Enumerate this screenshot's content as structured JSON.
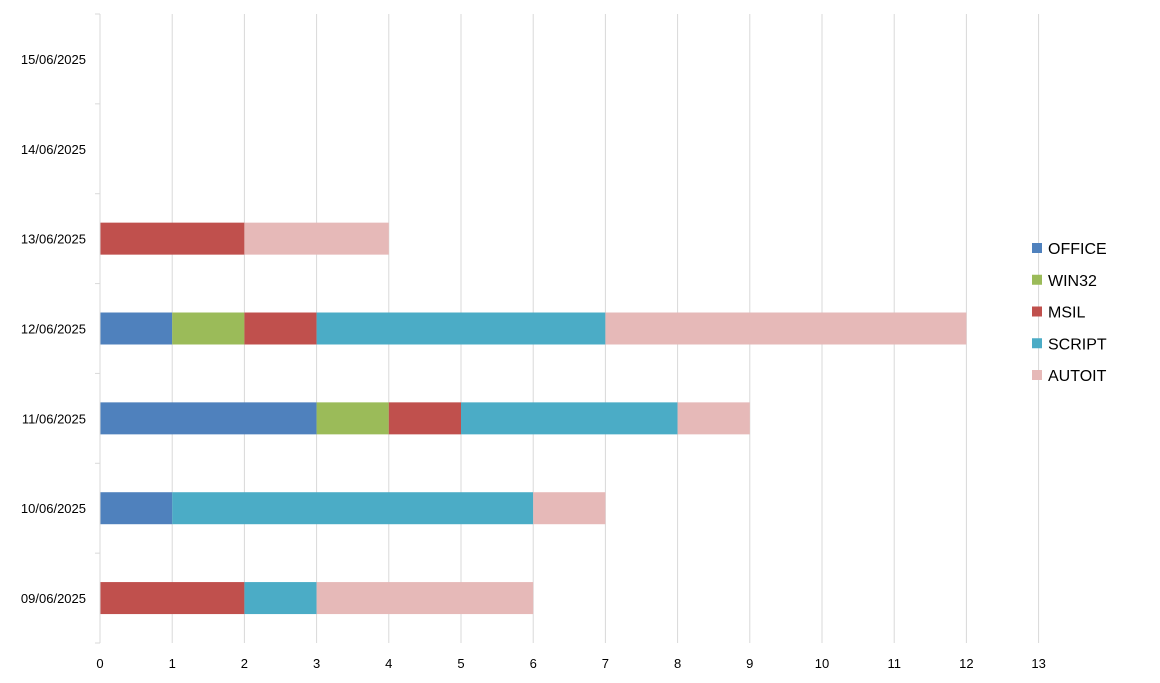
{
  "chart_data": {
    "type": "bar",
    "orientation": "horizontal",
    "stacked": true,
    "title": "",
    "xlabel": "",
    "ylabel": "",
    "xlim": [
      0,
      13
    ],
    "x_ticks": [
      0,
      1,
      2,
      3,
      4,
      5,
      6,
      7,
      8,
      9,
      10,
      11,
      12,
      13
    ],
    "grid": "vertical",
    "legend_position": "right",
    "categories": [
      "09/06/2025",
      "10/06/2025",
      "11/06/2025",
      "12/06/2025",
      "13/06/2025",
      "14/06/2025",
      "15/06/2025"
    ],
    "series": [
      {
        "name": "OFFICE",
        "color": "#4f81bd",
        "values": [
          0,
          1,
          3,
          1,
          0,
          0,
          0
        ]
      },
      {
        "name": "WIN32",
        "color": "#9bbb59",
        "values": [
          0,
          0,
          1,
          1,
          0,
          0,
          0
        ]
      },
      {
        "name": "MSIL",
        "color": "#c0504d",
        "values": [
          2,
          0,
          1,
          1,
          2,
          0,
          0
        ]
      },
      {
        "name": "SCRIPT",
        "color": "#4bacc6",
        "values": [
          1,
          5,
          3,
          4,
          0,
          0,
          0
        ]
      },
      {
        "name": "AUTOIT",
        "color": "#e6b9b8",
        "values": [
          3,
          1,
          1,
          5,
          2,
          0,
          0
        ]
      }
    ]
  }
}
